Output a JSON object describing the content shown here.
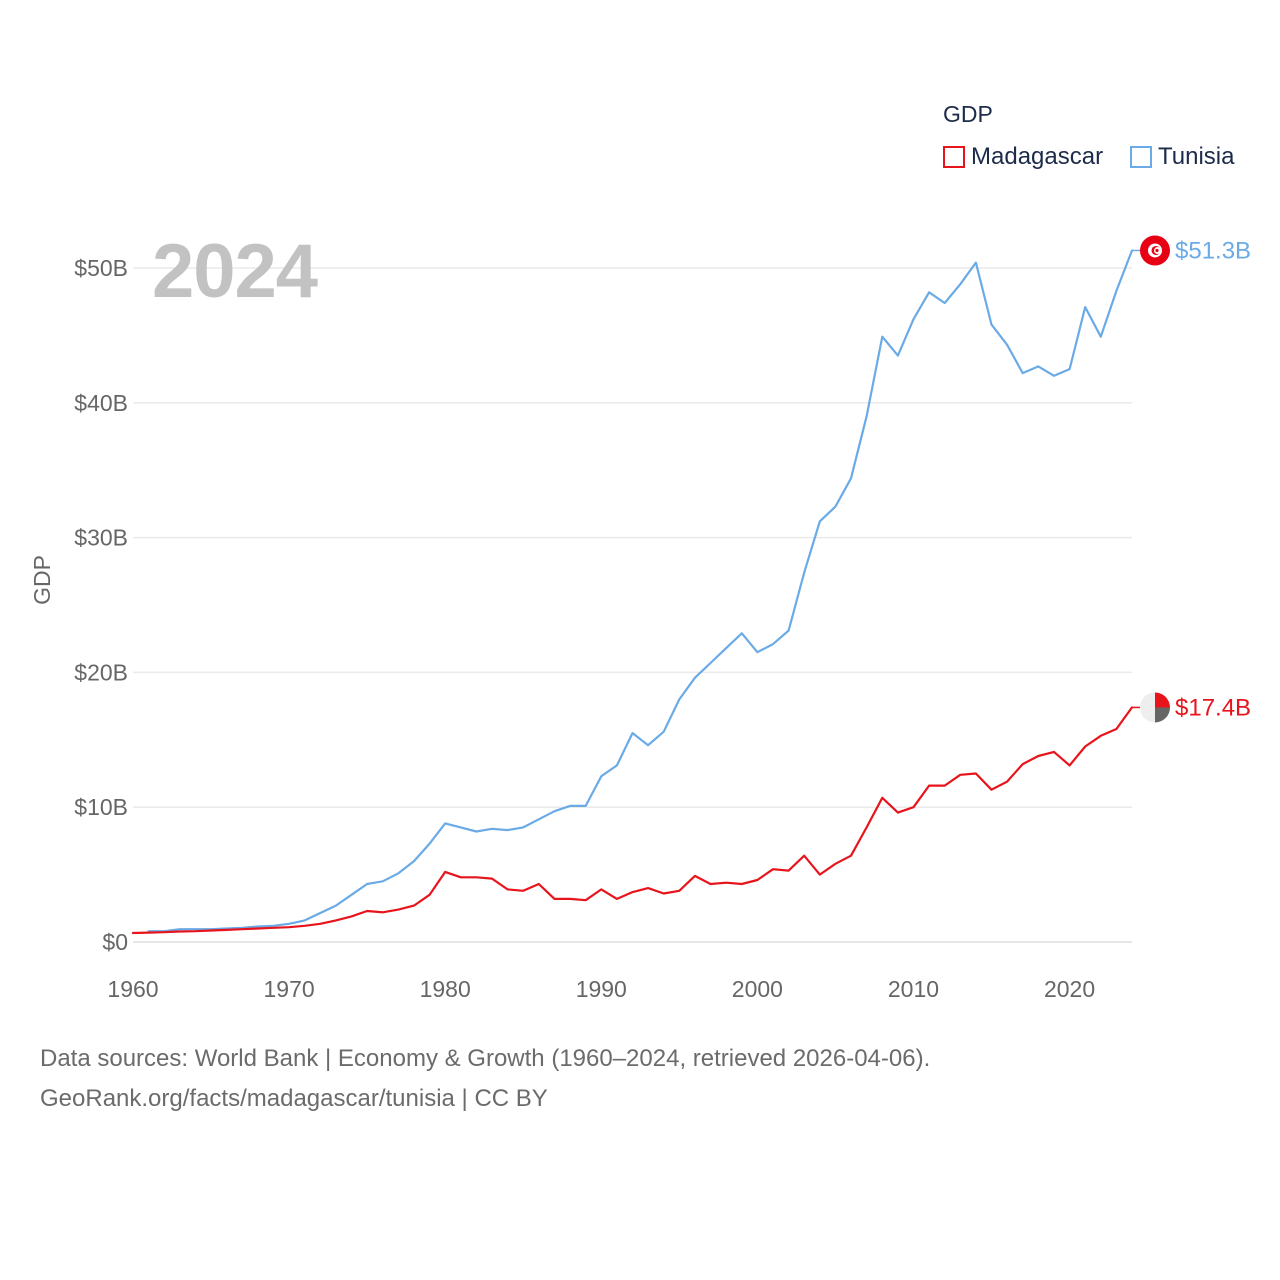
{
  "year_label": "2024",
  "legend": {
    "title": "GDP",
    "items": [
      {
        "label": "Madagascar",
        "color": "#e8141c"
      },
      {
        "label": "Tunisia",
        "color": "#6aaae6"
      }
    ]
  },
  "footer": {
    "line1": "Data sources: World Bank | Economy & Growth (1960–2024, retrieved 2026-04-06).",
    "line2": "GeoRank.org/facts/madagascar/tunisia | CC BY"
  },
  "chart_data": {
    "type": "line",
    "title": "GDP",
    "xlabel": "",
    "ylabel": "GDP",
    "xlim": [
      1960,
      2024
    ],
    "ylim": [
      0,
      50
    ],
    "x_ticks": [
      1960,
      1970,
      1980,
      1990,
      2000,
      2010,
      2020
    ],
    "y_ticks": [
      {
        "value": 0,
        "label": "$0"
      },
      {
        "value": 10,
        "label": "$10B"
      },
      {
        "value": 20,
        "label": "$20B"
      },
      {
        "value": 30,
        "label": "$30B"
      },
      {
        "value": 40,
        "label": "$40B"
      },
      {
        "value": 50,
        "label": "$50B"
      }
    ],
    "series": [
      {
        "name": "Tunisia",
        "color": "#6aaae6",
        "end_label": "$51.3B",
        "x": [
          1961,
          1962,
          1963,
          1964,
          1965,
          1966,
          1967,
          1968,
          1969,
          1970,
          1971,
          1972,
          1973,
          1974,
          1975,
          1976,
          1977,
          1978,
          1979,
          1980,
          1981,
          1982,
          1983,
          1984,
          1985,
          1986,
          1987,
          1988,
          1989,
          1990,
          1991,
          1992,
          1993,
          1994,
          1995,
          1996,
          1997,
          1998,
          1999,
          2000,
          2001,
          2002,
          2003,
          2004,
          2005,
          2006,
          2007,
          2008,
          2009,
          2010,
          2011,
          2012,
          2013,
          2014,
          2015,
          2016,
          2017,
          2018,
          2019,
          2020,
          2021,
          2022,
          2023,
          2024
        ],
        "values": [
          0.8,
          0.8,
          0.95,
          0.95,
          0.95,
          1.0,
          1.05,
          1.15,
          1.2,
          1.35,
          1.6,
          2.15,
          2.7,
          3.5,
          4.3,
          4.5,
          5.1,
          6.0,
          7.3,
          8.8,
          8.5,
          8.2,
          8.4,
          8.3,
          8.5,
          9.1,
          9.7,
          10.1,
          10.1,
          12.3,
          13.1,
          15.5,
          14.6,
          15.6,
          18.0,
          19.6,
          20.7,
          21.8,
          22.9,
          21.5,
          22.1,
          23.1,
          27.4,
          31.2,
          32.3,
          34.4,
          39.0,
          44.9,
          43.5,
          46.2,
          48.2,
          47.4,
          48.8,
          50.4,
          45.8,
          44.3,
          42.2,
          42.7,
          42.0,
          42.5,
          47.1,
          44.9,
          48.3,
          51.3
        ]
      },
      {
        "name": "Madagascar",
        "color": "#e8141c",
        "end_label": "$17.4B",
        "x": [
          1960,
          1961,
          1962,
          1963,
          1964,
          1965,
          1966,
          1967,
          1968,
          1969,
          1970,
          1971,
          1972,
          1973,
          1974,
          1975,
          1976,
          1977,
          1978,
          1979,
          1980,
          1981,
          1982,
          1983,
          1984,
          1985,
          1986,
          1987,
          1988,
          1989,
          1990,
          1991,
          1992,
          1993,
          1994,
          1995,
          1996,
          1997,
          1998,
          1999,
          2000,
          2001,
          2002,
          2003,
          2004,
          2005,
          2006,
          2007,
          2008,
          2009,
          2010,
          2011,
          2012,
          2013,
          2014,
          2015,
          2016,
          2017,
          2018,
          2019,
          2020,
          2021,
          2022,
          2023,
          2024
        ],
        "values": [
          0.67,
          0.7,
          0.73,
          0.78,
          0.8,
          0.85,
          0.9,
          0.95,
          1.0,
          1.05,
          1.1,
          1.2,
          1.35,
          1.6,
          1.9,
          2.3,
          2.2,
          2.4,
          2.7,
          3.5,
          5.2,
          4.8,
          4.8,
          4.7,
          3.9,
          3.8,
          4.3,
          3.2,
          3.2,
          3.1,
          3.9,
          3.2,
          3.7,
          4.0,
          3.6,
          3.8,
          4.9,
          4.3,
          4.4,
          4.3,
          4.6,
          5.4,
          5.3,
          6.4,
          5.0,
          5.8,
          6.4,
          8.5,
          10.7,
          9.6,
          10.0,
          11.6,
          11.6,
          12.4,
          12.5,
          11.3,
          11.9,
          13.2,
          13.8,
          14.1,
          13.1,
          14.5,
          15.3,
          15.8,
          17.4
        ]
      }
    ]
  }
}
